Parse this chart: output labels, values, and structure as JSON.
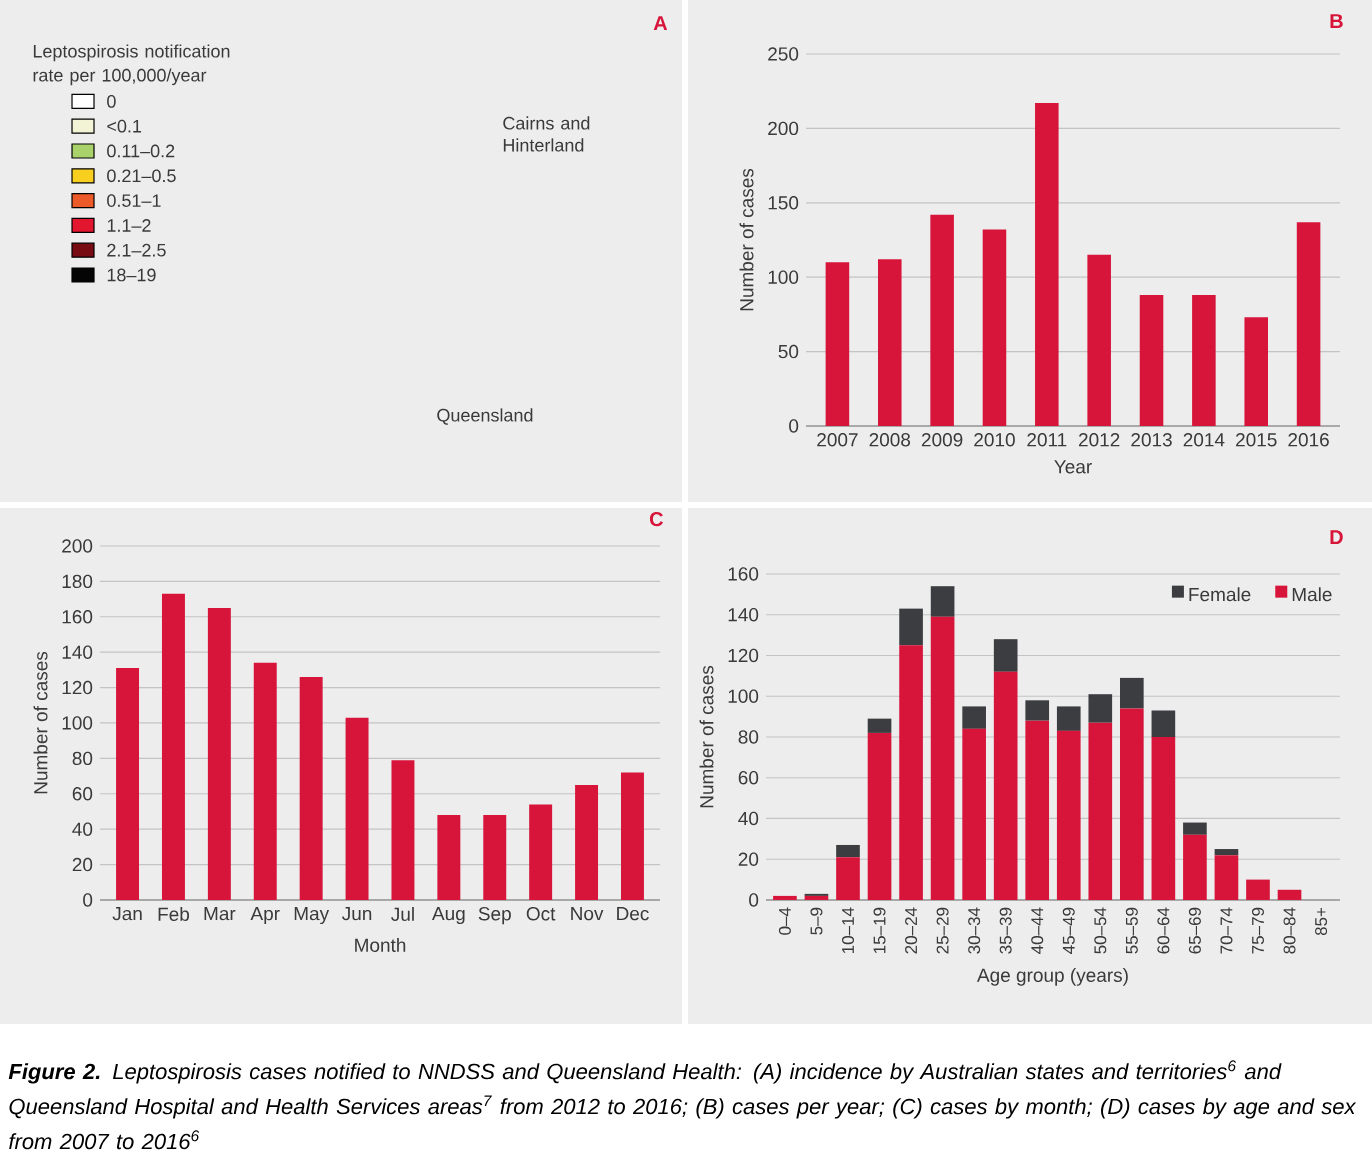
{
  "chart_data": [
    {
      "type": "other",
      "title": "A",
      "legend_title": "Leptospirosis notification rate per 100,000/year",
      "categories": [
        "0",
        "<0.1",
        "0.11–0.2",
        "0.21–0.5",
        "0.51–1",
        "1.1–2",
        "2.1–2.5",
        "18–19"
      ],
      "colors": [
        "#ffffff",
        "#f3f4d6",
        "#a9d26b",
        "#f8cf1f",
        "#ec5a2a",
        "#e2162e",
        "#780b12",
        "#050505"
      ],
      "annotations": [
        "Cairns and Hinterland",
        "Queensland"
      ]
    },
    {
      "type": "bar",
      "title": "B",
      "categories": [
        "2007",
        "2008",
        "2009",
        "2010",
        "2011",
        "2012",
        "2013",
        "2014",
        "2015",
        "2016"
      ],
      "values": [
        110,
        112,
        142,
        132,
        217,
        115,
        88,
        88,
        73,
        137
      ],
      "color": "#d7143a",
      "xlabel": "Year",
      "ylabel": "Number of cases",
      "ylim": [
        0,
        250
      ],
      "yticks": [
        0,
        50,
        100,
        150,
        200,
        250
      ],
      "grid": "y"
    },
    {
      "type": "bar",
      "title": "C",
      "categories": [
        "Jan",
        "Feb",
        "Mar",
        "Apr",
        "May",
        "Jun",
        "Jul",
        "Aug",
        "Sep",
        "Oct",
        "Nov",
        "Dec"
      ],
      "values": [
        131,
        173,
        165,
        134,
        126,
        103,
        79,
        48,
        48,
        54,
        65,
        72
      ],
      "color": "#d7143a",
      "xlabel": "Month",
      "ylabel": "Number of cases",
      "ylim": [
        0,
        200
      ],
      "yticks": [
        0,
        20,
        40,
        60,
        80,
        100,
        120,
        140,
        160,
        180,
        200
      ],
      "grid": "y"
    },
    {
      "type": "bar",
      "title": "D",
      "categories": [
        "0–4",
        "5–9",
        "10–14",
        "15–19",
        "20–24",
        "25–29",
        "30–34",
        "35–39",
        "40–44",
        "45–49",
        "50–54",
        "55–59",
        "60–64",
        "65–69",
        "70–74",
        "75–79",
        "80–84",
        "85+"
      ],
      "stacked": true,
      "series": [
        {
          "name": "Male",
          "color": "#d7143a",
          "values": [
            2,
            2,
            21,
            82,
            125,
            139,
            84,
            112,
            88,
            83,
            87,
            94,
            80,
            32,
            22,
            10,
            5,
            0
          ]
        },
        {
          "name": "Female",
          "color": "#3c3d40",
          "values": [
            0,
            1,
            6,
            7,
            18,
            15,
            11,
            16,
            10,
            12,
            14,
            15,
            13,
            6,
            3,
            0,
            0,
            0
          ]
        }
      ],
      "xlabel": "Age group (years)",
      "ylabel": "Number of cases",
      "ylim": [
        0,
        160
      ],
      "yticks": [
        0,
        20,
        40,
        60,
        80,
        100,
        120,
        140,
        160
      ],
      "grid": "y",
      "legend": "top right",
      "annotations": [
        "**Figure 2.** Leptospirosis cases notified to NNDSS and Queensland Health: (A) incidence by Australian states and territories$^{6}$ and Queensland Hospital and Health Services areas$^{7}$ from 2012 to 2016; (B) cases per year; (C) cases by month; (D) cases by age and sex from 2007 to 2016$^{6}$"
      ]
    }
  ]
}
